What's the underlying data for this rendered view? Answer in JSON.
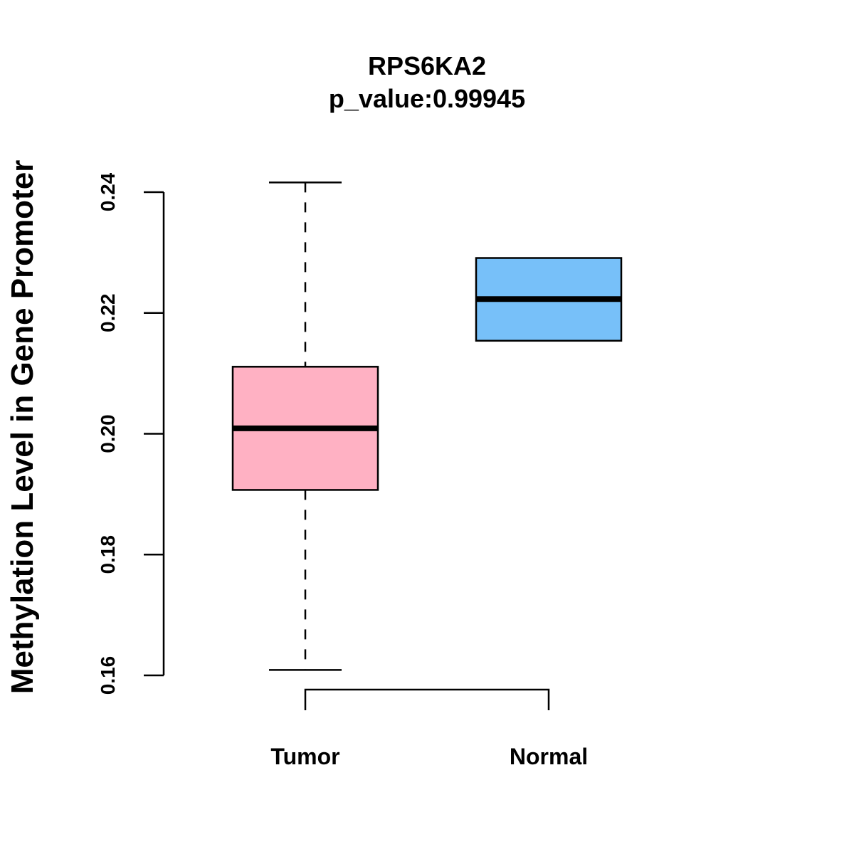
{
  "chart_data": {
    "type": "boxplot",
    "title": "RPS6KA2",
    "subtitle": "p_value:0.99945",
    "xlabel": "",
    "ylabel": "Methylation Level in Gene Promoter",
    "ylim": [
      0.16,
      0.24
    ],
    "yticks": [
      0.16,
      0.18,
      0.2,
      0.22,
      0.24
    ],
    "ytick_labels": [
      "0.16",
      "0.18",
      "0.20",
      "0.22",
      "0.24"
    ],
    "grid": false,
    "significance_bracket": true,
    "categories": [
      "Tumor",
      "Normal"
    ],
    "series": [
      {
        "name": "Tumor",
        "color": "#FFB1C3",
        "whisker_low": 0.1609,
        "q1": 0.1907,
        "median": 0.2009,
        "q3": 0.2111,
        "whisker_high": 0.2416
      },
      {
        "name": "Normal",
        "color": "#77C0F9",
        "whisker_low": 0.2154,
        "q1": 0.2154,
        "median": 0.2223,
        "q3": 0.2291,
        "whisker_high": 0.2291
      }
    ]
  }
}
